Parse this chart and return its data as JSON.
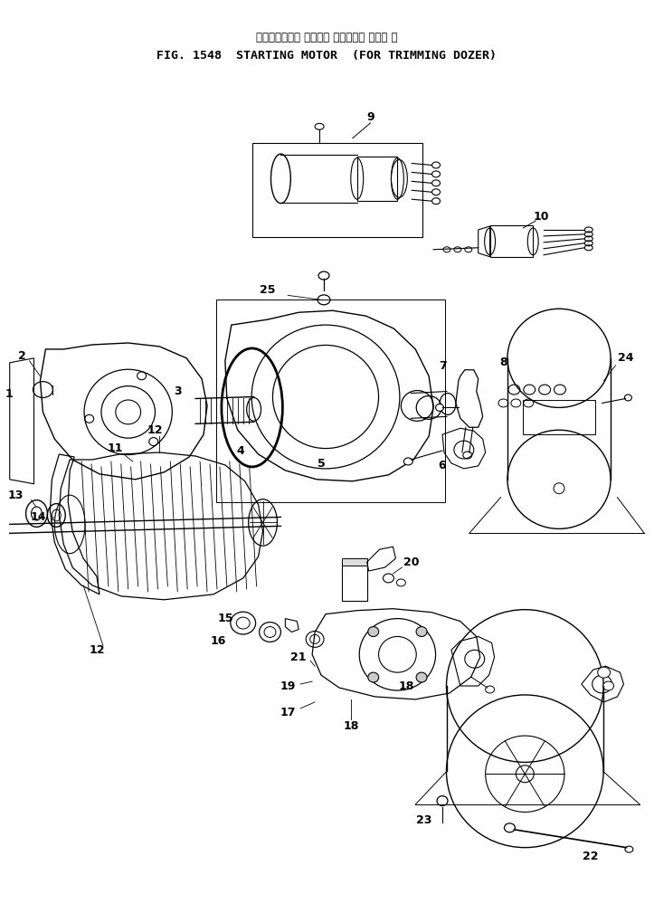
{
  "title_jp": "スターティング モータ　 トリミング ドーザ 用",
  "title_en": "FIG. 1548  STARTING MOTOR  (FOR TRIMMING DOZER)",
  "bg_color": "#ffffff",
  "line_color": "#000000",
  "fig_width": 7.23,
  "fig_height": 10.09,
  "dpi": 100
}
